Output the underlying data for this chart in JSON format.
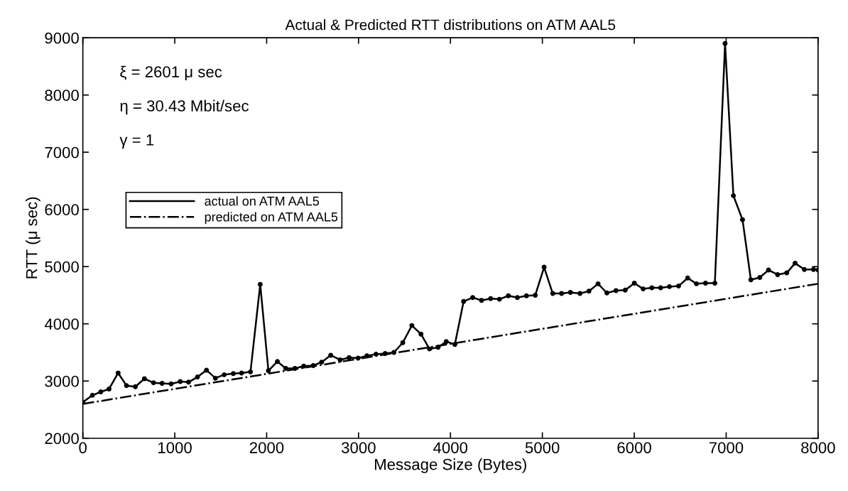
{
  "chart_data": {
    "type": "line",
    "title": "Actual & Predicted RTT distributions on ATM AAL5",
    "xlabel": "Message Size (Bytes)",
    "ylabel": "RTT (μ sec)",
    "annotations": [
      "ξ = 2601 μ sec",
      "η = 30.43 Mbit/sec",
      "γ = 1"
    ],
    "series": [
      {
        "name": "actual on ATM AAL5",
        "color": "#000000",
        "marker": "circle",
        "line_style": "solid",
        "x": [
          0,
          104,
          195,
          285,
          384,
          475,
          571,
          670,
          769,
          862,
          961,
          1060,
          1150,
          1247,
          1345,
          1442,
          1538,
          1637,
          1727,
          1824,
          1930,
          2019,
          2117,
          2208,
          2307,
          2403,
          2507,
          2598,
          2697,
          2800,
          2897,
          2995,
          3091,
          3190,
          3289,
          3385,
          3481,
          3580,
          3679,
          3772,
          3866,
          3954,
          4048,
          4143,
          4242,
          4338,
          4437,
          4533,
          4630,
          4728,
          4827,
          4923,
          5019,
          5113,
          5209,
          5305,
          5409,
          5507,
          5606,
          5702,
          5801,
          5902,
          6001,
          6097,
          6191,
          6287,
          6383,
          6482,
          6581,
          6677,
          6775,
          6877,
          6988,
          7079,
          7178,
          7269,
          7366,
          7461,
          7560,
          7659,
          7750,
          7851,
          7950,
          8000
        ],
        "values": [
          2630,
          2750,
          2810,
          2860,
          3140,
          2920,
          2900,
          3040,
          2970,
          2960,
          2950,
          2990,
          2980,
          3070,
          3190,
          3050,
          3110,
          3130,
          3140,
          3160,
          4690,
          3180,
          3340,
          3220,
          3220,
          3260,
          3270,
          3330,
          3450,
          3370,
          3410,
          3400,
          3440,
          3470,
          3480,
          3500,
          3670,
          3970,
          3820,
          3560,
          3590,
          3690,
          3640,
          4390,
          4460,
          4410,
          4440,
          4430,
          4490,
          4460,
          4490,
          4500,
          4990,
          4530,
          4530,
          4550,
          4530,
          4570,
          4700,
          4540,
          4580,
          4590,
          4710,
          4610,
          4630,
          4630,
          4650,
          4660,
          4800,
          4700,
          4710,
          4710,
          8900,
          6240,
          5820,
          4770,
          4810,
          4940,
          4860,
          4890,
          5060,
          4950,
          4950,
          4940
        ]
      },
      {
        "name": "predicted on ATM AAL5",
        "color": "#000000",
        "marker": "none",
        "line_style": "dashdot",
        "x": [
          0,
          8000
        ],
        "values": [
          2600,
          4700
        ]
      }
    ],
    "xlim": [
      0,
      8000
    ],
    "xticks": [
      0,
      1000,
      2000,
      3000,
      4000,
      5000,
      6000,
      7000,
      8000
    ],
    "ylim": [
      2000,
      9000
    ],
    "yticks": [
      2000,
      3000,
      4000,
      5000,
      6000,
      7000,
      8000,
      9000
    ],
    "grid": false,
    "legend": "top left"
  }
}
